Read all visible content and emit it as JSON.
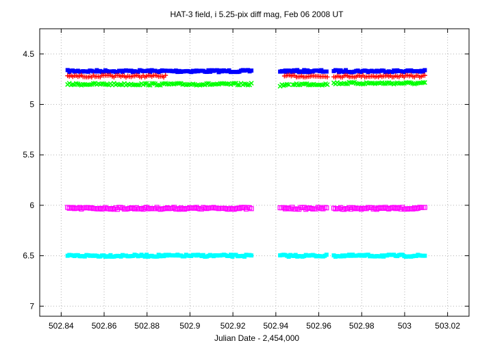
{
  "chart_data": {
    "type": "scatter",
    "title": "HAT-3 field, i 5.25-pix diff mag, Feb 06 2008 UT",
    "xlabel": "Julian Date - 2,454,000",
    "ylabel": "",
    "xlim": [
      502.83,
      503.03
    ],
    "ylim": [
      7.1,
      4.25
    ],
    "y_inverted": true,
    "grid": true,
    "legend": "none",
    "x_ticks": [
      "502.84",
      "502.86",
      "502.88",
      "502.9",
      "502.92",
      "502.94",
      "502.96",
      "502.98",
      "503",
      "503.02"
    ],
    "x_tick_values": [
      502.84,
      502.86,
      502.88,
      502.9,
      502.92,
      502.94,
      502.96,
      502.98,
      503.0,
      503.02
    ],
    "y_ticks": [
      "4.5",
      "5",
      "5.5",
      "6",
      "6.5",
      "7"
    ],
    "y_tick_values": [
      4.5,
      5.0,
      5.5,
      6.0,
      6.5,
      7.0
    ],
    "series": [
      {
        "color": "#0000ff",
        "marker": "filled-square",
        "segments": [
          {
            "x_start": 502.843,
            "x_end": 502.929,
            "y": 4.67
          },
          {
            "x_start": 502.942,
            "x_end": 502.964,
            "y": 4.67
          },
          {
            "x_start": 502.967,
            "x_end": 503.01,
            "y": 4.67
          }
        ]
      },
      {
        "color": "#ff0000",
        "marker": "plus",
        "segments": [
          {
            "x_start": 502.843,
            "x_end": 502.889,
            "y": 4.72
          },
          {
            "x_start": 502.944,
            "x_end": 502.964,
            "y": 4.72
          },
          {
            "x_start": 502.967,
            "x_end": 503.01,
            "y": 4.72
          }
        ]
      },
      {
        "color": "#00ff00",
        "marker": "cross",
        "segments": [
          {
            "x_start": 502.843,
            "x_end": 502.929,
            "y": 4.8
          },
          {
            "x_start": 502.942,
            "x_end": 502.946,
            "y": 4.81
          },
          {
            "x_start": 502.948,
            "x_end": 502.964,
            "y": 4.8
          },
          {
            "x_start": 502.967,
            "x_end": 503.01,
            "y": 4.79
          }
        ]
      },
      {
        "color": "#ff00ff",
        "marker": "open-square",
        "segments": [
          {
            "x_start": 502.843,
            "x_end": 502.929,
            "y": 6.03
          },
          {
            "x_start": 502.942,
            "x_end": 502.964,
            "y": 6.03
          },
          {
            "x_start": 502.967,
            "x_end": 503.01,
            "y": 6.03
          }
        ]
      },
      {
        "color": "#00ffff",
        "marker": "filled-square",
        "segments": [
          {
            "x_start": 502.843,
            "x_end": 502.929,
            "y": 6.5
          },
          {
            "x_start": 502.942,
            "x_end": 502.964,
            "y": 6.5
          },
          {
            "x_start": 502.967,
            "x_end": 503.01,
            "y": 6.5
          }
        ]
      }
    ]
  }
}
